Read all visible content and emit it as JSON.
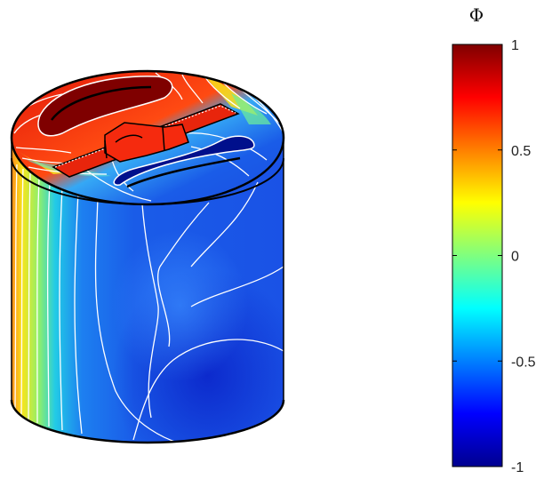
{
  "colorbar": {
    "title": "Φ",
    "ticks": [
      {
        "value": 1,
        "label": "1"
      },
      {
        "value": 0.5,
        "label": "0.5"
      },
      {
        "value": 0,
        "label": "0"
      },
      {
        "value": -0.5,
        "label": "-0.5"
      },
      {
        "value": -1,
        "label": "-1"
      }
    ],
    "range": [
      -1,
      1
    ],
    "colormap": "jet"
  },
  "colors": {
    "dark_red": "#7f0000",
    "red": "#e41a0c",
    "orange": "#ff8c1a",
    "yellow": "#f5f01c",
    "cyan": "#2bd8e4",
    "blue": "#1a55e6",
    "dark_blue": "#000f8c",
    "contour_line": "#ffffff",
    "edge_line": "#000000"
  }
}
